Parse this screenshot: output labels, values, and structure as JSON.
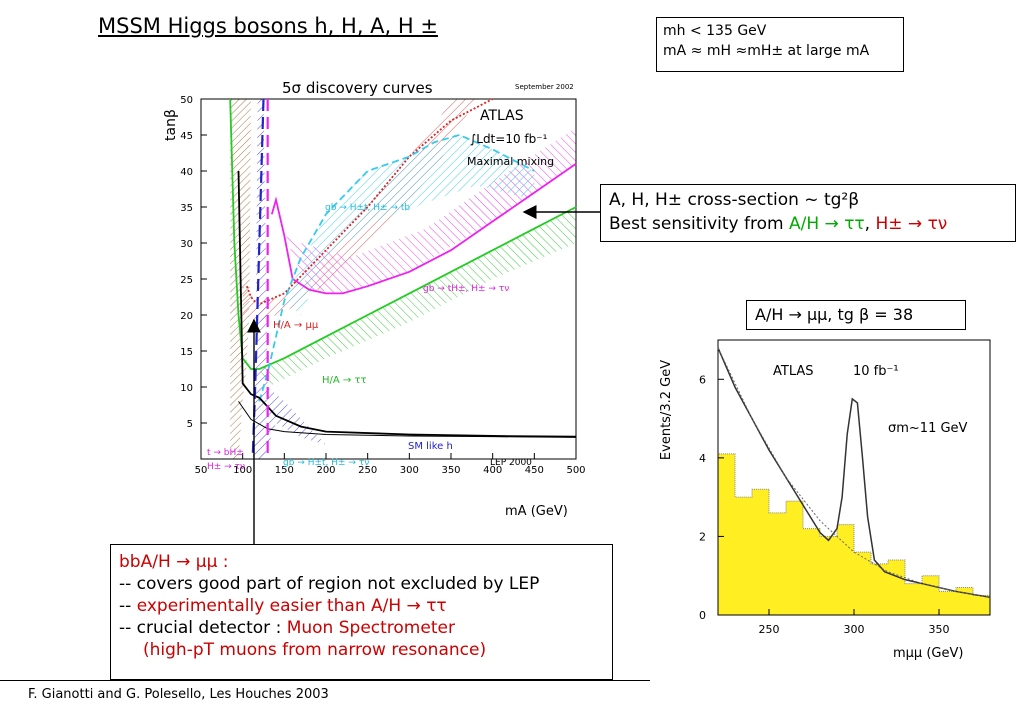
{
  "slide": {
    "title": "MSSM  Higgs bosons  h, H, A, H ±",
    "footer": "F. Gianotti and G. Polesello,  Les Houches 2003"
  },
  "mass_box": {
    "line1": "mh < 135 GeV",
    "line2": "mA ≈ mH ≈mH±  at  large  mA"
  },
  "xsec_box": {
    "line1": "A, H, H±  cross-section ~ tg²β",
    "line2_prefix": "Best sensitivity from ",
    "line2_ah": "A/H → ττ",
    "line2_sep": ", ",
    "line2_hpm": "H± → τν"
  },
  "bbah_box": {
    "head": "bbA/H → μμ  :",
    "item1": "-- covers good part of region not excluded by LEP",
    "item2_prefix": "-- ",
    "item2": "experimentally easier than A/H → ττ",
    "item3_prefix": "-- crucial detector : ",
    "item3": "Muon Spectrometer",
    "item3_sub": "(high-pT muons from narrow resonance)"
  },
  "mumu_box": {
    "label": "A/H → μμ,  tg β = 38"
  },
  "chart_data": [
    {
      "type": "line",
      "title": "5σ discovery curves",
      "date": "September 2002",
      "experiment": "ATLAS",
      "luminosity": "∫Ldt=10 fb⁻¹",
      "scenario": "Maximal mixing",
      "xlabel": "mA (GeV)",
      "ylabel": "tanβ",
      "xlim": [
        50,
        500
      ],
      "ylim": [
        0,
        50
      ],
      "xticks": [
        50,
        100,
        150,
        200,
        250,
        300,
        350,
        400,
        450,
        500
      ],
      "yticks": [
        5,
        10,
        15,
        20,
        25,
        30,
        35,
        40,
        45,
        50
      ],
      "annotations": {
        "gb_tb": "gb → H±t, H± → tb",
        "gb_taunu": "gb → tH±, H± → τν",
        "ha_mumu": "H/A → μμ",
        "ha_tautau": "H/A → ττ",
        "sm_like": "SM like h",
        "lep": "LEP 2000",
        "t_bh": "t → bH±",
        "h_taunu": "H± → τν",
        "gb_low": "gb → H±t, H± → τν"
      },
      "series": [
        {
          "key": "ha_tautau",
          "color": "#22cc22",
          "x": [
            85,
            90,
            95,
            100,
            110,
            120,
            150,
            200,
            250,
            300,
            350,
            400,
            450,
            500
          ],
          "y": [
            50,
            30,
            20,
            14,
            12.5,
            12.5,
            14,
            17,
            20,
            23,
            26,
            29,
            32,
            35
          ]
        },
        {
          "key": "gb_taunu",
          "color": "#ee22ee",
          "x": [
            135,
            140,
            150,
            160,
            180,
            200,
            220,
            250,
            300,
            350,
            400,
            450,
            500
          ],
          "y": [
            34,
            36,
            31,
            25,
            23.5,
            23,
            23,
            24,
            26,
            29,
            33,
            37,
            41
          ]
        },
        {
          "key": "ha_mumu",
          "color": "#dd2222",
          "x": [
            105,
            110,
            115,
            120,
            130,
            150,
            200,
            250,
            300,
            350,
            400
          ],
          "y": [
            24,
            22.5,
            21.8,
            21.5,
            22,
            23,
            29,
            35,
            42,
            47,
            50
          ]
        },
        {
          "key": "gb_tb",
          "color": "#33ccee",
          "x": [
            120,
            130,
            140,
            150,
            170,
            200,
            250,
            300,
            330,
            360,
            400,
            450
          ],
          "y": [
            8,
            12,
            17,
            22,
            28,
            34,
            40,
            42,
            44,
            45,
            43,
            40
          ]
        },
        {
          "key": "sm_like",
          "color": "#000000",
          "x": [
            95,
            100,
            110,
            120,
            140,
            170,
            200,
            300,
            400,
            500
          ],
          "y": [
            40,
            10.5,
            9,
            8.5,
            6,
            4.5,
            3.8,
            3.4,
            3.2,
            3.1
          ]
        },
        {
          "key": "lep",
          "color": "#000000",
          "x": [
            95,
            110,
            130,
            150,
            200,
            300,
            400,
            500
          ],
          "y": [
            8,
            5.5,
            4.2,
            3.8,
            3.4,
            3.2,
            3.1,
            3.0
          ]
        },
        {
          "key": "pink_dash",
          "color": "#ee22ee",
          "x": [
            130,
            130,
            130,
            130
          ],
          "y": [
            50,
            30,
            10,
            0
          ]
        },
        {
          "key": "blue_dash",
          "color": "#2222cc",
          "x": [
            125,
            120,
            115,
            112
          ],
          "y": [
            50,
            30,
            10,
            0
          ]
        }
      ]
    },
    {
      "type": "line",
      "experiment": "ATLAS",
      "luminosity": "10 fb⁻¹",
      "annotation": "σm~11 GeV",
      "xlabel": "mμμ (GeV)",
      "ylabel": "Events/3.2 GeV",
      "xlim": [
        220,
        380
      ],
      "ylim": [
        0,
        7
      ],
      "xticks": [
        250,
        300,
        350
      ],
      "yticks": [
        0,
        2,
        4,
        6
      ],
      "series": [
        {
          "key": "signal",
          "color": "#333333",
          "x": [
            220,
            230,
            240,
            250,
            260,
            270,
            280,
            285,
            290,
            293,
            296,
            299,
            302,
            305,
            308,
            312,
            318,
            330,
            340,
            360,
            380
          ],
          "y": [
            6.8,
            5.8,
            5.0,
            4.2,
            3.5,
            2.8,
            2.1,
            1.9,
            2.2,
            3.0,
            4.6,
            5.5,
            5.4,
            4.0,
            2.5,
            1.4,
            1.1,
            0.9,
            0.8,
            0.6,
            0.45
          ]
        },
        {
          "key": "background",
          "color": "#666666",
          "x": [
            220,
            240,
            260,
            280,
            300,
            320,
            340,
            360,
            380
          ],
          "y": [
            6.8,
            5.0,
            3.5,
            2.4,
            1.6,
            1.1,
            0.8,
            0.6,
            0.45
          ]
        },
        {
          "key": "bkg_hist",
          "color": "#d4b800",
          "x": [
            220,
            230,
            240,
            250,
            260,
            270,
            280,
            290,
            300,
            310,
            320,
            330,
            340,
            350,
            360,
            370,
            380
          ],
          "y": [
            4.1,
            3.0,
            3.2,
            2.6,
            2.9,
            2.2,
            2.0,
            2.3,
            1.6,
            1.3,
            1.4,
            0.8,
            1.0,
            0.6,
            0.7,
            0.5,
            0.4
          ]
        }
      ]
    }
  ]
}
